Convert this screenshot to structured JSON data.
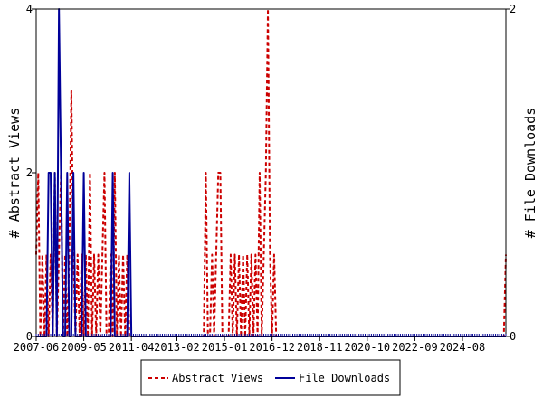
{
  "chart_data": {
    "type": "line",
    "title": "",
    "xlabel": "",
    "x_tick_labels": [
      "2007-06",
      "2009-05",
      "2011-04",
      "2013-02",
      "2015-01",
      "2016-12",
      "2018-11",
      "2020-10",
      "2022-09",
      "2024-08"
    ],
    "ylabel_left": "# Abstract Views",
    "ylabel_right": "# File Downloads",
    "ylim_left": [
      0,
      4
    ],
    "ylim_right": [
      0,
      2
    ],
    "yticks_left": [
      "0",
      "2",
      "4"
    ],
    "yticks_right": [
      "0",
      "2"
    ],
    "x_start": "2007-06",
    "x_end": "2026-05",
    "legend_position": "bottom-center",
    "grid": false,
    "series": [
      {
        "name": "Abstract Views",
        "axis": "left",
        "style": "dashed",
        "color": "#cc0000",
        "points": [
          [
            "2007-06",
            1
          ],
          [
            "2007-07",
            2
          ],
          [
            "2007-08",
            0
          ],
          [
            "2007-09",
            1
          ],
          [
            "2007-10",
            0
          ],
          [
            "2007-11",
            1
          ],
          [
            "2007-12",
            0
          ],
          [
            "2008-01",
            1
          ],
          [
            "2008-02",
            0
          ],
          [
            "2008-03",
            2
          ],
          [
            "2008-04",
            0
          ],
          [
            "2008-05",
            1
          ],
          [
            "2008-06",
            2
          ],
          [
            "2008-07",
            0
          ],
          [
            "2008-08",
            1
          ],
          [
            "2008-09",
            0
          ],
          [
            "2008-10",
            1
          ],
          [
            "2008-11",
            3
          ],
          [
            "2008-12",
            1
          ],
          [
            "2009-01",
            0
          ],
          [
            "2009-02",
            1
          ],
          [
            "2009-03",
            0
          ],
          [
            "2009-04",
            1
          ],
          [
            "2009-05",
            0
          ],
          [
            "2009-06",
            1
          ],
          [
            "2009-07",
            0
          ],
          [
            "2009-08",
            2
          ],
          [
            "2009-09",
            0
          ],
          [
            "2009-10",
            1
          ],
          [
            "2009-11",
            0
          ],
          [
            "2009-12",
            1
          ],
          [
            "2010-01",
            0
          ],
          [
            "2010-02",
            1
          ],
          [
            "2010-03",
            2
          ],
          [
            "2010-04",
            0
          ],
          [
            "2010-05",
            0
          ],
          [
            "2010-06",
            1
          ],
          [
            "2010-07",
            0
          ],
          [
            "2010-08",
            2
          ],
          [
            "2010-09",
            0
          ],
          [
            "2010-10",
            1
          ],
          [
            "2010-11",
            0
          ],
          [
            "2010-12",
            1
          ],
          [
            "2011-01",
            0
          ],
          [
            "2011-02",
            1
          ],
          [
            "2011-03",
            0
          ],
          [
            "2011-04",
            0
          ],
          [
            "2011-05",
            0
          ],
          [
            "2011-06",
            0
          ],
          [
            "2011-07",
            0
          ],
          [
            "2014-03",
            0
          ],
          [
            "2014-04",
            2
          ],
          [
            "2014-05",
            0
          ],
          [
            "2014-06",
            0
          ],
          [
            "2014-07",
            1
          ],
          [
            "2014-08",
            0
          ],
          [
            "2014-09",
            1
          ],
          [
            "2014-10",
            2
          ],
          [
            "2014-11",
            2
          ],
          [
            "2014-12",
            0
          ],
          [
            "2015-01",
            0
          ],
          [
            "2015-02",
            0
          ],
          [
            "2015-03",
            0
          ],
          [
            "2015-04",
            1
          ],
          [
            "2015-05",
            0
          ],
          [
            "2015-06",
            1
          ],
          [
            "2015-07",
            0
          ],
          [
            "2015-08",
            1
          ],
          [
            "2015-09",
            0
          ],
          [
            "2015-10",
            1
          ],
          [
            "2015-11",
            0
          ],
          [
            "2015-12",
            1
          ],
          [
            "2016-01",
            0
          ],
          [
            "2016-02",
            1
          ],
          [
            "2016-03",
            0
          ],
          [
            "2016-04",
            1
          ],
          [
            "2016-05",
            0
          ],
          [
            "2016-06",
            2
          ],
          [
            "2016-07",
            0
          ],
          [
            "2016-08",
            1
          ],
          [
            "2016-09",
            2
          ],
          [
            "2016-10",
            4
          ],
          [
            "2016-11",
            1
          ],
          [
            "2016-12",
            0
          ],
          [
            "2017-01",
            1
          ],
          [
            "2017-02",
            0
          ],
          [
            "2017-03",
            0
          ],
          [
            "2017-04",
            0
          ],
          [
            "2017-05",
            0
          ],
          [
            "2017-06",
            0
          ],
          [
            "2017-07",
            0
          ],
          [
            "2017-08",
            0
          ],
          [
            "2017-09",
            0
          ],
          [
            "2017-10",
            0
          ],
          [
            "2017-11",
            0
          ],
          [
            "2017-12",
            0
          ],
          [
            "2018-01",
            0
          ],
          [
            "2018-02",
            0
          ],
          [
            "2018-03",
            0
          ],
          [
            "2018-04",
            0
          ],
          [
            "2018-05",
            0
          ],
          [
            "2018-06",
            0
          ],
          [
            "2018-07",
            0
          ],
          [
            "2018-08",
            0
          ],
          [
            "2018-09",
            0
          ],
          [
            "2018-10",
            0
          ],
          [
            "2018-11",
            0
          ],
          [
            "2018-12",
            0
          ],
          [
            "2019-01",
            0
          ],
          [
            "2019-02",
            0
          ],
          [
            "2019-03",
            0
          ],
          [
            "2019-04",
            0
          ],
          [
            "2019-05",
            0
          ],
          [
            "2019-06",
            0
          ],
          [
            "2019-07",
            0
          ],
          [
            "2019-08",
            0
          ],
          [
            "2019-09",
            0
          ],
          [
            "2019-10",
            0
          ],
          [
            "2019-11",
            0
          ],
          [
            "2019-12",
            0
          ],
          [
            "2020-01",
            0
          ],
          [
            "2020-02",
            0
          ],
          [
            "2020-03",
            0
          ],
          [
            "2020-04",
            0
          ],
          [
            "2020-05",
            0
          ],
          [
            "2020-06",
            0
          ],
          [
            "2020-07",
            0
          ],
          [
            "2020-08",
            0
          ],
          [
            "2020-09",
            0
          ],
          [
            "2020-10",
            0
          ],
          [
            "2020-11",
            0
          ],
          [
            "2020-12",
            0
          ],
          [
            "2021-01",
            0
          ],
          [
            "2021-02",
            0
          ],
          [
            "2021-03",
            0
          ],
          [
            "2021-04",
            0
          ],
          [
            "2021-05",
            0
          ],
          [
            "2021-06",
            0
          ],
          [
            "2021-07",
            0
          ],
          [
            "2021-08",
            0
          ],
          [
            "2021-09",
            0
          ],
          [
            "2021-10",
            0
          ],
          [
            "2021-11",
            0
          ],
          [
            "2021-12",
            0
          ],
          [
            "2022-01",
            0
          ],
          [
            "2022-02",
            0
          ],
          [
            "2022-03",
            0
          ],
          [
            "2022-04",
            0
          ],
          [
            "2022-05",
            0
          ],
          [
            "2022-06",
            0
          ],
          [
            "2022-07",
            0
          ],
          [
            "2022-08",
            0
          ],
          [
            "2022-09",
            0
          ],
          [
            "2022-10",
            0
          ],
          [
            "2022-11",
            0
          ],
          [
            "2022-12",
            0
          ],
          [
            "2023-01",
            0
          ],
          [
            "2023-02",
            0
          ],
          [
            "2023-03",
            0
          ],
          [
            "2023-04",
            0
          ],
          [
            "2023-05",
            0
          ],
          [
            "2023-06",
            0
          ],
          [
            "2023-07",
            0
          ],
          [
            "2023-08",
            0
          ],
          [
            "2023-09",
            0
          ],
          [
            "2023-10",
            0
          ],
          [
            "2023-11",
            0
          ],
          [
            "2023-12",
            0
          ],
          [
            "2024-01",
            0
          ],
          [
            "2024-02",
            0
          ],
          [
            "2024-03",
            0
          ],
          [
            "2024-04",
            0
          ],
          [
            "2024-05",
            0
          ],
          [
            "2024-06",
            0
          ],
          [
            "2024-07",
            0
          ],
          [
            "2024-08",
            0
          ],
          [
            "2024-09",
            0
          ],
          [
            "2024-10",
            0
          ],
          [
            "2024-11",
            0
          ],
          [
            "2024-12",
            0
          ],
          [
            "2025-01",
            0
          ],
          [
            "2025-02",
            0
          ],
          [
            "2025-03",
            0
          ],
          [
            "2025-04",
            0
          ],
          [
            "2025-05",
            0
          ],
          [
            "2025-06",
            0
          ],
          [
            "2025-07",
            0
          ],
          [
            "2025-08",
            0
          ],
          [
            "2025-09",
            0
          ],
          [
            "2025-10",
            0
          ],
          [
            "2025-11",
            0
          ],
          [
            "2025-12",
            0
          ],
          [
            "2026-01",
            0
          ],
          [
            "2026-02",
            0
          ],
          [
            "2026-03",
            0
          ],
          [
            "2026-04",
            0
          ],
          [
            "2026-05",
            1
          ]
        ]
      },
      {
        "name": "File Downloads",
        "axis": "right",
        "style": "solid",
        "color": "#000099",
        "points": [
          [
            "2007-06",
            0
          ],
          [
            "2007-11",
            0
          ],
          [
            "2007-12",
            1
          ],
          [
            "2008-01",
            1
          ],
          [
            "2008-02",
            0
          ],
          [
            "2008-03",
            1
          ],
          [
            "2008-04",
            0
          ],
          [
            "2008-05",
            2
          ],
          [
            "2008-06",
            1
          ],
          [
            "2008-07",
            0
          ],
          [
            "2008-08",
            0
          ],
          [
            "2008-09",
            1
          ],
          [
            "2008-10",
            0
          ],
          [
            "2008-11",
            0
          ],
          [
            "2008-12",
            1
          ],
          [
            "2009-01",
            0
          ],
          [
            "2009-02",
            0
          ],
          [
            "2009-03",
            0
          ],
          [
            "2009-04",
            0
          ],
          [
            "2009-05",
            1
          ],
          [
            "2009-06",
            0
          ],
          [
            "2009-07",
            0
          ],
          [
            "2009-08",
            0
          ],
          [
            "2009-09",
            0
          ],
          [
            "2009-10",
            0
          ],
          [
            "2009-11",
            0
          ],
          [
            "2009-12",
            0
          ],
          [
            "2010-01",
            0
          ],
          [
            "2010-02",
            0
          ],
          [
            "2010-03",
            0
          ],
          [
            "2010-04",
            0
          ],
          [
            "2010-05",
            0
          ],
          [
            "2010-06",
            0
          ],
          [
            "2010-07",
            1
          ],
          [
            "2010-08",
            0
          ],
          [
            "2010-09",
            0
          ],
          [
            "2010-10",
            0
          ],
          [
            "2010-11",
            0
          ],
          [
            "2010-12",
            0
          ],
          [
            "2011-01",
            0
          ],
          [
            "2011-02",
            0
          ],
          [
            "2011-03",
            1
          ],
          [
            "2011-04",
            0
          ],
          [
            "2011-05",
            0
          ],
          [
            "2026-05",
            0
          ]
        ]
      }
    ]
  }
}
